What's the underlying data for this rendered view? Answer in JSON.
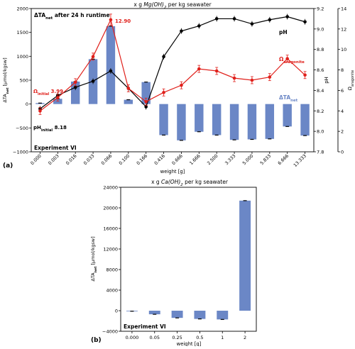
{
  "colors": {
    "bar": "#6b87c6",
    "ph": "#000000",
    "omega": "#e0201b",
    "axis": "#000000",
    "bg": "#ffffff"
  },
  "chart_data": [
    {
      "type": "bar",
      "panel_label": "(a)",
      "title_prefix": "x g ",
      "title_italic": "Mg(OH)",
      "title_sub": "2",
      "title_suffix": " per kg seawater",
      "inner_title_main": "ΔTA",
      "inner_title_sub": "net",
      "inner_title_rest": " after 24 h runtime",
      "experiment_label": "Experiment VI",
      "xlabel": "weight [g]",
      "ylabel_main": "ΔTA",
      "ylabel_sub": "net",
      "ylabel_rest": " [µmol/kgsw]",
      "ylabel_ph": "pH",
      "ylabel_omega_main": "Ω",
      "ylabel_omega_sub": "aragonite",
      "categories": [
        "0.000",
        "0.003",
        "0.016",
        "0.033",
        "0.066",
        "0.100",
        "0.166",
        "0.416",
        "0.666",
        "1.666",
        "2.500",
        "3.333",
        "5.000",
        "5.833",
        "6.666",
        "13.333"
      ],
      "dta_values": [
        20,
        110,
        470,
        940,
        1630,
        90,
        460,
        -650,
        -760,
        -580,
        -650,
        -750,
        -740,
        -730,
        -470,
        -660
      ],
      "ph_values": [
        8.22,
        8.35,
        8.43,
        8.49,
        8.59,
        8.42,
        8.24,
        8.73,
        8.98,
        9.03,
        9.1,
        9.1,
        9.05,
        9.09,
        9.12,
        9.07
      ],
      "omega_values": [
        3.99,
        5.3,
        6.8,
        9.3,
        12.9,
        6.2,
        4.9,
        5.8,
        6.5,
        8.1,
        7.9,
        7.2,
        7.0,
        7.3,
        9.1,
        7.5
      ],
      "y_left_lim": [
        -1000,
        2000
      ],
      "y_left_ticks": [
        -1000,
        -500,
        0,
        500,
        1000,
        1500,
        2000
      ],
      "y_left_tick_labels": [
        "−1000",
        "−500",
        "0",
        "500",
        "1000",
        "1500",
        "2000"
      ],
      "y_ph_lim": [
        7.8,
        9.2
      ],
      "y_ph_ticks": [
        7.8,
        8.0,
        8.2,
        8.4,
        8.6,
        8.8,
        9.0,
        9.2
      ],
      "y_ph_tick_labels": [
        "7.8",
        "8.0",
        "8.2",
        "8.4",
        "8.6",
        "8.8",
        "9.0",
        "9.2"
      ],
      "y_omega_lim": [
        0,
        14
      ],
      "y_omega_ticks": [
        0,
        2,
        4,
        6,
        8,
        10,
        12,
        14
      ],
      "y_omega_tick_labels": [
        "0",
        "2",
        "4",
        "6",
        "8",
        "10",
        "12",
        "14"
      ],
      "annotations": {
        "omega_peak": "12.90",
        "omega_initial_main": "Ω",
        "omega_initial_sub": "initial",
        "omega_initial_val": " 3.99",
        "ph_initial_main": "pH",
        "ph_initial_sub": "initial",
        "ph_initial_val": " 8.18",
        "ph_legend": "pH",
        "omega_legend_main": "Ω",
        "omega_legend_sub": "aragonite",
        "dta_legend_main": "ΔTA",
        "dta_legend_sub": "net"
      }
    },
    {
      "type": "bar",
      "panel_label": "(b)",
      "title_prefix": "x g ",
      "title_italic": "Ca(OH)",
      "title_sub": "2",
      "title_suffix": " per kg seawater",
      "experiment_label": "Experiment VI",
      "xlabel": "weight [g]",
      "ylabel_main": "ΔTA",
      "ylabel_sub": "net",
      "ylabel_rest": " [µmol/kgsw]",
      "categories": [
        "0.000",
        "0.05",
        "0.25",
        "0.5",
        "1",
        "2"
      ],
      "values": [
        -100,
        -700,
        -1400,
        -1600,
        -1700,
        21400
      ],
      "ylim": [
        -4000,
        24000
      ],
      "yticks": [
        -4000,
        0,
        4000,
        8000,
        12000,
        16000,
        20000,
        24000
      ],
      "ytick_labels": [
        "−4000",
        "0",
        "4000",
        "8000",
        "12000",
        "16000",
        "20000",
        "24000"
      ]
    }
  ]
}
